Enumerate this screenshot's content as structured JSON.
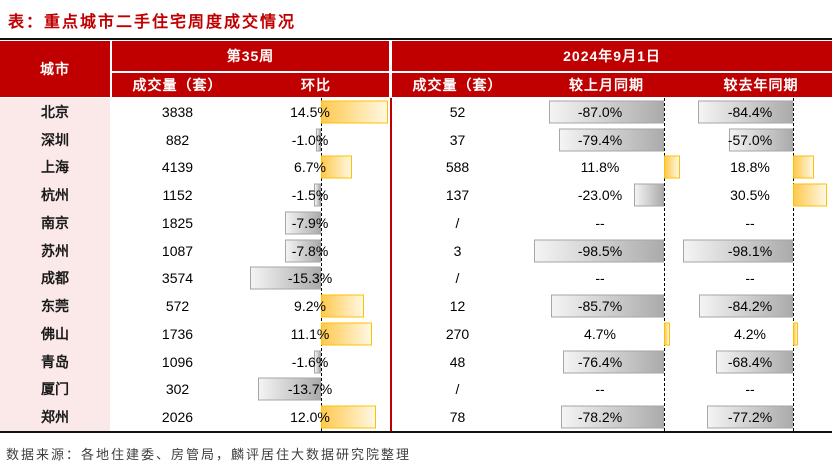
{
  "title": "表：重点城市二手住宅周度成交情况",
  "source_note": "数据来源：各地住建委、房管局，麟评居住大数据研究院整理",
  "header": {
    "city": "城市",
    "week_section": "第35周",
    "date_section": "2024年9月1日",
    "week_volume": "成交量（套）",
    "week_wow": "环比",
    "date_volume": "成交量（套）",
    "date_mom": "较上月同期",
    "date_yoy": "较去年同期"
  },
  "colors": {
    "header_bg": "#c00000",
    "title": "#c00000",
    "city_column_bg": "#fbe9e9",
    "positive_bar": "#ffc000",
    "negative_bar": "#ababab"
  },
  "chart_data": {
    "type": "table",
    "title": "表：重点城市二手住宅周度成交情况",
    "columns": [
      "城市",
      "第35周 成交量（套）",
      "第35周 环比",
      "2024年9月1日 成交量（套）",
      "2024年9月1日 较上月同期",
      "2024年9月1日 较去年同期"
    ],
    "bar_columns": {
      "wow": {
        "min": -15.3,
        "max": 14.5
      },
      "mom": {
        "min": -98.5,
        "max": 11.8
      },
      "yoy": {
        "min": -98.1,
        "max": 30.5
      }
    },
    "rows": [
      {
        "city": "北京",
        "week_vol": "3838",
        "wow": 14.5,
        "wow_label": "14.5%",
        "day_vol": "52",
        "mom": -87.0,
        "mom_label": "-87.0%",
        "yoy": -84.4,
        "yoy_label": "-84.4%"
      },
      {
        "city": "深圳",
        "week_vol": "882",
        "wow": -1.0,
        "wow_label": "-1.0%",
        "day_vol": "37",
        "mom": -79.4,
        "mom_label": "-79.4%",
        "yoy": -57.0,
        "yoy_label": "-57.0%"
      },
      {
        "city": "上海",
        "week_vol": "4139",
        "wow": 6.7,
        "wow_label": "6.7%",
        "day_vol": "588",
        "mom": 11.8,
        "mom_label": "11.8%",
        "yoy": 18.8,
        "yoy_label": "18.8%"
      },
      {
        "city": "杭州",
        "week_vol": "1152",
        "wow": -1.5,
        "wow_label": "-1.5%",
        "day_vol": "137",
        "mom": -23.0,
        "mom_label": "-23.0%",
        "yoy": 30.5,
        "yoy_label": "30.5%"
      },
      {
        "city": "南京",
        "week_vol": "1825",
        "wow": -7.9,
        "wow_label": "-7.9%",
        "day_vol": "/",
        "mom": null,
        "mom_label": "--",
        "yoy": null,
        "yoy_label": "--"
      },
      {
        "city": "苏州",
        "week_vol": "1087",
        "wow": -7.8,
        "wow_label": "-7.8%",
        "day_vol": "3",
        "mom": -98.5,
        "mom_label": "-98.5%",
        "yoy": -98.1,
        "yoy_label": "-98.1%"
      },
      {
        "city": "成都",
        "week_vol": "3574",
        "wow": -15.3,
        "wow_label": "-15.3%",
        "day_vol": "/",
        "mom": null,
        "mom_label": "--",
        "yoy": null,
        "yoy_label": "--"
      },
      {
        "city": "东莞",
        "week_vol": "572",
        "wow": 9.2,
        "wow_label": "9.2%",
        "day_vol": "12",
        "mom": -85.7,
        "mom_label": "-85.7%",
        "yoy": -84.2,
        "yoy_label": "-84.2%"
      },
      {
        "city": "佛山",
        "week_vol": "1736",
        "wow": 11.1,
        "wow_label": "11.1%",
        "day_vol": "270",
        "mom": 4.7,
        "mom_label": "4.7%",
        "yoy": 4.2,
        "yoy_label": "4.2%"
      },
      {
        "city": "青岛",
        "week_vol": "1096",
        "wow": -1.6,
        "wow_label": "-1.6%",
        "day_vol": "48",
        "mom": -76.4,
        "mom_label": "-76.4%",
        "yoy": -68.4,
        "yoy_label": "-68.4%"
      },
      {
        "city": "厦门",
        "week_vol": "302",
        "wow": -13.7,
        "wow_label": "-13.7%",
        "day_vol": "/",
        "mom": null,
        "mom_label": "--",
        "yoy": null,
        "yoy_label": "--"
      },
      {
        "city": "郑州",
        "week_vol": "2026",
        "wow": 12.0,
        "wow_label": "12.0%",
        "day_vol": "78",
        "mom": -78.2,
        "mom_label": "-78.2%",
        "yoy": -77.2,
        "yoy_label": "-77.2%"
      }
    ],
    "source_note": "数据来源：各地住建委、房管局，麟评居住大数据研究院整理"
  }
}
